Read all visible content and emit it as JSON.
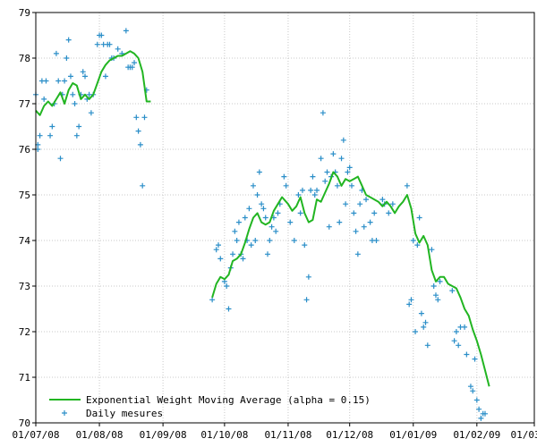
{
  "chart_data": {
    "type": "line",
    "title": "",
    "xlabel": "",
    "ylabel": "",
    "x_axis": {
      "type": "date",
      "range": [
        "2008-07-01",
        "2009-03-01"
      ],
      "ticks": [
        {
          "date": "2008-07-01",
          "label": "01/07/08"
        },
        {
          "date": "2008-08-01",
          "label": "01/08/08"
        },
        {
          "date": "2008-09-01",
          "label": "01/09/08"
        },
        {
          "date": "2008-10-01",
          "label": "01/10/08"
        },
        {
          "date": "2008-11-01",
          "label": "01/11/08"
        },
        {
          "date": "2008-12-01",
          "label": "01/12/08"
        },
        {
          "date": "2009-01-01",
          "label": "01/01/09"
        },
        {
          "date": "2009-02-01",
          "label": "01/02/09"
        },
        {
          "date": "2009-03-01",
          "label": "01/03/09"
        }
      ]
    },
    "y_axis": {
      "range": [
        70,
        79
      ],
      "ticks": [
        70,
        71,
        72,
        73,
        74,
        75,
        76,
        77,
        78,
        79
      ]
    },
    "grid": true,
    "legend": {
      "placement": "bottom-left"
    },
    "series": [
      {
        "name": "Exponential Weight Moving Average (alpha = 0.15)",
        "type": "line",
        "color": "#22b522",
        "segments": [
          [
            [
              "2008-07-01",
              76.85
            ],
            [
              "2008-07-03",
              76.75
            ],
            [
              "2008-07-05",
              76.95
            ],
            [
              "2008-07-07",
              77.05
            ],
            [
              "2008-07-09",
              76.95
            ],
            [
              "2008-07-11",
              77.1
            ],
            [
              "2008-07-13",
              77.25
            ],
            [
              "2008-07-15",
              77.0
            ],
            [
              "2008-07-17",
              77.3
            ],
            [
              "2008-07-19",
              77.45
            ],
            [
              "2008-07-21",
              77.4
            ],
            [
              "2008-07-23",
              77.1
            ],
            [
              "2008-07-25",
              77.2
            ],
            [
              "2008-07-27",
              77.1
            ],
            [
              "2008-07-29",
              77.2
            ],
            [
              "2008-07-31",
              77.45
            ],
            [
              "2008-08-02",
              77.7
            ],
            [
              "2008-08-04",
              77.85
            ],
            [
              "2008-08-06",
              77.95
            ],
            [
              "2008-08-08",
              78.0
            ],
            [
              "2008-08-10",
              78.05
            ],
            [
              "2008-08-12",
              78.05
            ],
            [
              "2008-08-14",
              78.1
            ],
            [
              "2008-08-16",
              78.15
            ],
            [
              "2008-08-18",
              78.1
            ],
            [
              "2008-08-20",
              78.0
            ],
            [
              "2008-08-22",
              77.7
            ],
            [
              "2008-08-24",
              77.05
            ],
            [
              "2008-08-26",
              77.05
            ]
          ],
          [
            [
              "2008-09-25",
              72.75
            ],
            [
              "2008-09-27",
              73.05
            ],
            [
              "2008-09-29",
              73.2
            ],
            [
              "2008-10-01",
              73.15
            ],
            [
              "2008-10-03",
              73.25
            ],
            [
              "2008-10-05",
              73.55
            ],
            [
              "2008-10-07",
              73.6
            ],
            [
              "2008-10-09",
              73.7
            ],
            [
              "2008-10-11",
              73.95
            ],
            [
              "2008-10-13",
              74.25
            ],
            [
              "2008-10-15",
              74.5
            ],
            [
              "2008-10-17",
              74.6
            ],
            [
              "2008-10-19",
              74.4
            ],
            [
              "2008-10-21",
              74.35
            ],
            [
              "2008-10-23",
              74.4
            ],
            [
              "2008-10-25",
              74.65
            ],
            [
              "2008-10-27",
              74.8
            ],
            [
              "2008-10-29",
              74.95
            ],
            [
              "2008-11-01",
              74.8
            ],
            [
              "2008-11-03",
              74.65
            ],
            [
              "2008-11-05",
              74.75
            ],
            [
              "2008-11-07",
              74.95
            ],
            [
              "2008-11-09",
              74.6
            ],
            [
              "2008-11-11",
              74.4
            ],
            [
              "2008-11-13",
              74.45
            ],
            [
              "2008-11-15",
              74.9
            ],
            [
              "2008-11-17",
              74.85
            ],
            [
              "2008-11-19",
              75.05
            ],
            [
              "2008-11-21",
              75.25
            ],
            [
              "2008-11-23",
              75.5
            ],
            [
              "2008-11-25",
              75.4
            ],
            [
              "2008-11-27",
              75.2
            ],
            [
              "2008-11-29",
              75.35
            ],
            [
              "2008-12-01",
              75.3
            ],
            [
              "2008-12-03",
              75.35
            ],
            [
              "2008-12-05",
              75.4
            ],
            [
              "2008-12-07",
              75.2
            ],
            [
              "2008-12-09",
              75.0
            ],
            [
              "2008-12-11",
              74.95
            ],
            [
              "2008-12-13",
              74.9
            ],
            [
              "2008-12-15",
              74.85
            ],
            [
              "2008-12-17",
              74.75
            ],
            [
              "2008-12-19",
              74.85
            ],
            [
              "2008-12-21",
              74.75
            ],
            [
              "2008-12-23",
              74.6
            ],
            [
              "2008-12-25",
              74.75
            ],
            [
              "2008-12-27",
              74.85
            ],
            [
              "2008-12-29",
              75.0
            ],
            [
              "2008-12-31",
              74.7
            ],
            [
              "2009-01-02",
              74.15
            ],
            [
              "2009-01-04",
              73.95
            ],
            [
              "2009-01-06",
              74.1
            ],
            [
              "2009-01-08",
              73.9
            ],
            [
              "2009-01-10",
              73.35
            ],
            [
              "2009-01-12",
              73.1
            ],
            [
              "2009-01-14",
              73.2
            ],
            [
              "2009-01-16",
              73.2
            ],
            [
              "2009-01-18",
              73.05
            ],
            [
              "2009-01-20",
              73.0
            ],
            [
              "2009-01-22",
              72.95
            ],
            [
              "2009-01-24",
              72.75
            ],
            [
              "2009-01-26",
              72.5
            ],
            [
              "2009-01-28",
              72.35
            ],
            [
              "2009-01-30",
              72.05
            ],
            [
              "2009-02-01",
              71.8
            ],
            [
              "2009-02-03",
              71.5
            ],
            [
              "2009-02-05",
              71.15
            ],
            [
              "2009-02-07",
              70.8
            ]
          ]
        ]
      },
      {
        "name": "Daily mesures",
        "type": "scatter",
        "marker": "+",
        "color": "#2a8ec8",
        "points": [
          [
            "2008-07-01",
            77.2
          ],
          [
            "2008-07-02",
            76.1
          ],
          [
            "2008-07-02",
            76.0
          ],
          [
            "2008-07-03",
            76.3
          ],
          [
            "2008-07-04",
            77.5
          ],
          [
            "2008-07-05",
            77.1
          ],
          [
            "2008-07-06",
            77.5
          ],
          [
            "2008-07-08",
            76.3
          ],
          [
            "2008-07-09",
            76.5
          ],
          [
            "2008-07-10",
            77.0
          ],
          [
            "2008-07-11",
            78.1
          ],
          [
            "2008-07-12",
            77.5
          ],
          [
            "2008-07-13",
            75.8
          ],
          [
            "2008-07-14",
            77.2
          ],
          [
            "2008-07-15",
            77.5
          ],
          [
            "2008-07-16",
            78.0
          ],
          [
            "2008-07-17",
            78.4
          ],
          [
            "2008-07-18",
            77.6
          ],
          [
            "2008-07-19",
            77.2
          ],
          [
            "2008-07-20",
            77.0
          ],
          [
            "2008-07-21",
            76.3
          ],
          [
            "2008-07-22",
            76.5
          ],
          [
            "2008-07-23",
            77.2
          ],
          [
            "2008-07-24",
            77.7
          ],
          [
            "2008-07-25",
            77.6
          ],
          [
            "2008-07-26",
            77.1
          ],
          [
            "2008-07-27",
            77.2
          ],
          [
            "2008-07-28",
            76.8
          ],
          [
            "2008-07-29",
            77.2
          ],
          [
            "2008-07-31",
            78.3
          ],
          [
            "2008-08-01",
            78.5
          ],
          [
            "2008-08-02",
            78.5
          ],
          [
            "2008-08-03",
            78.3
          ],
          [
            "2008-08-04",
            77.6
          ],
          [
            "2008-08-05",
            78.3
          ],
          [
            "2008-08-06",
            78.3
          ],
          [
            "2008-08-07",
            78.0
          ],
          [
            "2008-08-08",
            78.0
          ],
          [
            "2008-08-10",
            78.2
          ],
          [
            "2008-08-12",
            78.1
          ],
          [
            "2008-08-14",
            78.6
          ],
          [
            "2008-08-15",
            77.8
          ],
          [
            "2008-08-16",
            77.8
          ],
          [
            "2008-08-17",
            77.8
          ],
          [
            "2008-08-18",
            77.9
          ],
          [
            "2008-08-19",
            76.7
          ],
          [
            "2008-08-20",
            76.4
          ],
          [
            "2008-08-21",
            76.1
          ],
          [
            "2008-08-22",
            75.2
          ],
          [
            "2008-08-23",
            76.7
          ],
          [
            "2008-08-24",
            77.3
          ],
          [
            "2008-09-25",
            72.7
          ],
          [
            "2008-09-27",
            73.8
          ],
          [
            "2008-09-28",
            73.9
          ],
          [
            "2008-09-29",
            73.6
          ],
          [
            "2008-10-01",
            73.1
          ],
          [
            "2008-10-02",
            73.0
          ],
          [
            "2008-10-03",
            72.5
          ],
          [
            "2008-10-04",
            73.4
          ],
          [
            "2008-10-05",
            73.7
          ],
          [
            "2008-10-06",
            74.2
          ],
          [
            "2008-10-07",
            74.0
          ],
          [
            "2008-10-08",
            74.4
          ],
          [
            "2008-10-09",
            73.7
          ],
          [
            "2008-10-10",
            73.6
          ],
          [
            "2008-10-11",
            74.5
          ],
          [
            "2008-10-12",
            74.0
          ],
          [
            "2008-10-13",
            74.7
          ],
          [
            "2008-10-14",
            73.9
          ],
          [
            "2008-10-15",
            75.2
          ],
          [
            "2008-10-16",
            74.0
          ],
          [
            "2008-10-17",
            75.0
          ],
          [
            "2008-10-18",
            75.5
          ],
          [
            "2008-10-19",
            74.8
          ],
          [
            "2008-10-20",
            74.7
          ],
          [
            "2008-10-21",
            74.5
          ],
          [
            "2008-10-22",
            73.7
          ],
          [
            "2008-10-23",
            74.0
          ],
          [
            "2008-10-24",
            74.3
          ],
          [
            "2008-10-25",
            74.5
          ],
          [
            "2008-10-26",
            74.2
          ],
          [
            "2008-10-27",
            74.6
          ],
          [
            "2008-10-28",
            74.8
          ],
          [
            "2008-10-30",
            75.4
          ],
          [
            "2008-10-31",
            75.2
          ],
          [
            "2008-11-02",
            74.4
          ],
          [
            "2008-11-04",
            74.0
          ],
          [
            "2008-11-06",
            75.0
          ],
          [
            "2008-11-07",
            74.6
          ],
          [
            "2008-11-08",
            75.1
          ],
          [
            "2008-11-09",
            73.9
          ],
          [
            "2008-11-10",
            72.7
          ],
          [
            "2008-11-11",
            73.2
          ],
          [
            "2008-11-12",
            75.1
          ],
          [
            "2008-11-13",
            75.4
          ],
          [
            "2008-11-14",
            75.0
          ],
          [
            "2008-11-15",
            75.1
          ],
          [
            "2008-11-17",
            75.8
          ],
          [
            "2008-11-18",
            76.8
          ],
          [
            "2008-11-19",
            75.3
          ],
          [
            "2008-11-20",
            75.5
          ],
          [
            "2008-11-21",
            74.3
          ],
          [
            "2008-11-22",
            75.4
          ],
          [
            "2008-11-23",
            75.9
          ],
          [
            "2008-11-24",
            75.5
          ],
          [
            "2008-11-25",
            75.2
          ],
          [
            "2008-11-26",
            74.4
          ],
          [
            "2008-11-27",
            75.8
          ],
          [
            "2008-11-28",
            76.2
          ],
          [
            "2008-11-29",
            74.8
          ],
          [
            "2008-11-30",
            75.5
          ],
          [
            "2008-12-01",
            75.6
          ],
          [
            "2008-12-02",
            75.2
          ],
          [
            "2008-12-03",
            74.6
          ],
          [
            "2008-12-04",
            74.2
          ],
          [
            "2008-12-05",
            73.7
          ],
          [
            "2008-12-06",
            74.8
          ],
          [
            "2008-12-07",
            75.1
          ],
          [
            "2008-12-08",
            74.3
          ],
          [
            "2008-12-09",
            74.9
          ],
          [
            "2008-12-11",
            74.4
          ],
          [
            "2008-12-12",
            74.0
          ],
          [
            "2008-12-13",
            74.6
          ],
          [
            "2008-12-14",
            74.0
          ],
          [
            "2008-12-17",
            74.9
          ],
          [
            "2008-12-18",
            74.8
          ],
          [
            "2008-12-20",
            74.6
          ],
          [
            "2008-12-22",
            74.8
          ],
          [
            "2008-12-29",
            75.2
          ],
          [
            "2008-12-30",
            72.6
          ],
          [
            "2008-12-31",
            72.7
          ],
          [
            "2009-01-01",
            74.0
          ],
          [
            "2009-01-02",
            72.0
          ],
          [
            "2009-01-03",
            73.9
          ],
          [
            "2009-01-04",
            74.5
          ],
          [
            "2009-01-05",
            72.4
          ],
          [
            "2009-01-06",
            72.1
          ],
          [
            "2009-01-07",
            72.2
          ],
          [
            "2009-01-08",
            71.7
          ],
          [
            "2009-01-10",
            73.8
          ],
          [
            "2009-01-11",
            73.0
          ],
          [
            "2009-01-12",
            72.8
          ],
          [
            "2009-01-13",
            72.7
          ],
          [
            "2009-01-14",
            73.1
          ],
          [
            "2009-01-20",
            72.9
          ],
          [
            "2009-01-21",
            71.8
          ],
          [
            "2009-01-22",
            72.0
          ],
          [
            "2009-01-23",
            71.7
          ],
          [
            "2009-01-24",
            72.1
          ],
          [
            "2009-01-26",
            72.1
          ],
          [
            "2009-01-27",
            71.5
          ],
          [
            "2009-01-29",
            70.8
          ],
          [
            "2009-01-30",
            70.7
          ],
          [
            "2009-01-31",
            71.4
          ],
          [
            "2009-02-01",
            70.5
          ],
          [
            "2009-02-02",
            70.3
          ],
          [
            "2009-02-03",
            70.1
          ],
          [
            "2009-02-04",
            70.2
          ],
          [
            "2009-02-05",
            70.2
          ]
        ]
      }
    ]
  }
}
